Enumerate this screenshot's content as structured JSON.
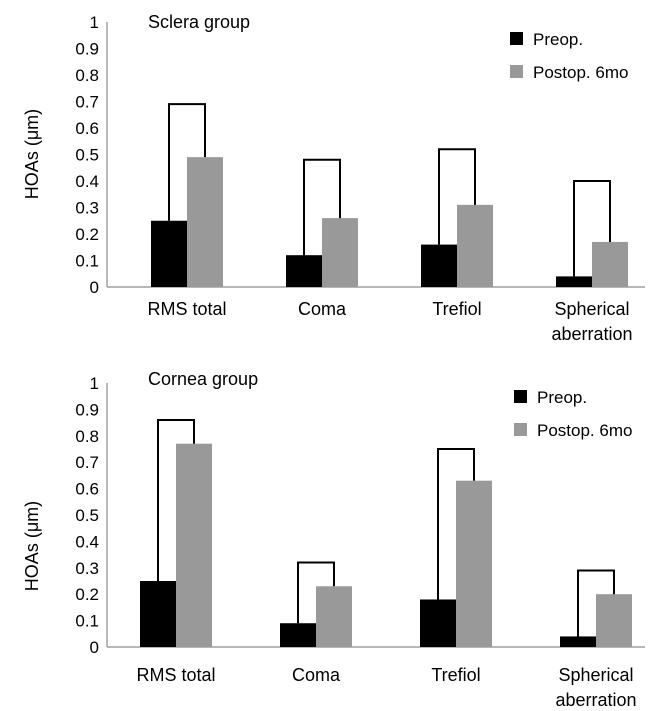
{
  "chart_data": [
    {
      "type": "bar",
      "title": "Sclera group",
      "ylabel": "HOAs (μm)",
      "xlabel": "",
      "ylim": [
        0,
        1
      ],
      "yticks": [
        "0",
        "0.1",
        "0.2",
        "0.3",
        "0.4",
        "0.5",
        "0.6",
        "0.7",
        "0.8",
        "0.9",
        "1"
      ],
      "categories": [
        [
          "RMS total"
        ],
        [
          "Coma"
        ],
        [
          "Trefiol"
        ],
        [
          "Spherical",
          "aberration"
        ]
      ],
      "series": [
        {
          "name": "Preop.",
          "color": "#000000",
          "values": [
            0.25,
            0.12,
            0.16,
            0.04
          ]
        },
        {
          "name": "Postop. 6mo",
          "color": "#999999",
          "values": [
            0.49,
            0.26,
            0.31,
            0.17
          ]
        }
      ],
      "bracket_top": [
        0.69,
        0.48,
        0.52,
        0.4
      ],
      "grid": false,
      "legend_position": "top-right"
    },
    {
      "type": "bar",
      "title": "Cornea group",
      "ylabel": "HOAs (μm)",
      "xlabel": "",
      "ylim": [
        0,
        1
      ],
      "yticks": [
        "0",
        "0.1",
        "0.2",
        "0.3",
        "0.4",
        "0.5",
        "0.6",
        "0.7",
        "0.8",
        "0.9",
        "1"
      ],
      "categories": [
        [
          "RMS total"
        ],
        [
          "Coma"
        ],
        [
          "Trefiol"
        ],
        [
          "Spherical",
          "aberration"
        ]
      ],
      "series": [
        {
          "name": "Preop.",
          "color": "#000000",
          "values": [
            0.25,
            0.09,
            0.18,
            0.04
          ]
        },
        {
          "name": "Postop. 6mo",
          "color": "#999999",
          "values": [
            0.77,
            0.23,
            0.63,
            0.2
          ]
        }
      ],
      "bracket_top": [
        0.86,
        0.32,
        0.75,
        0.29
      ],
      "grid": false,
      "legend_position": "top-right"
    }
  ]
}
